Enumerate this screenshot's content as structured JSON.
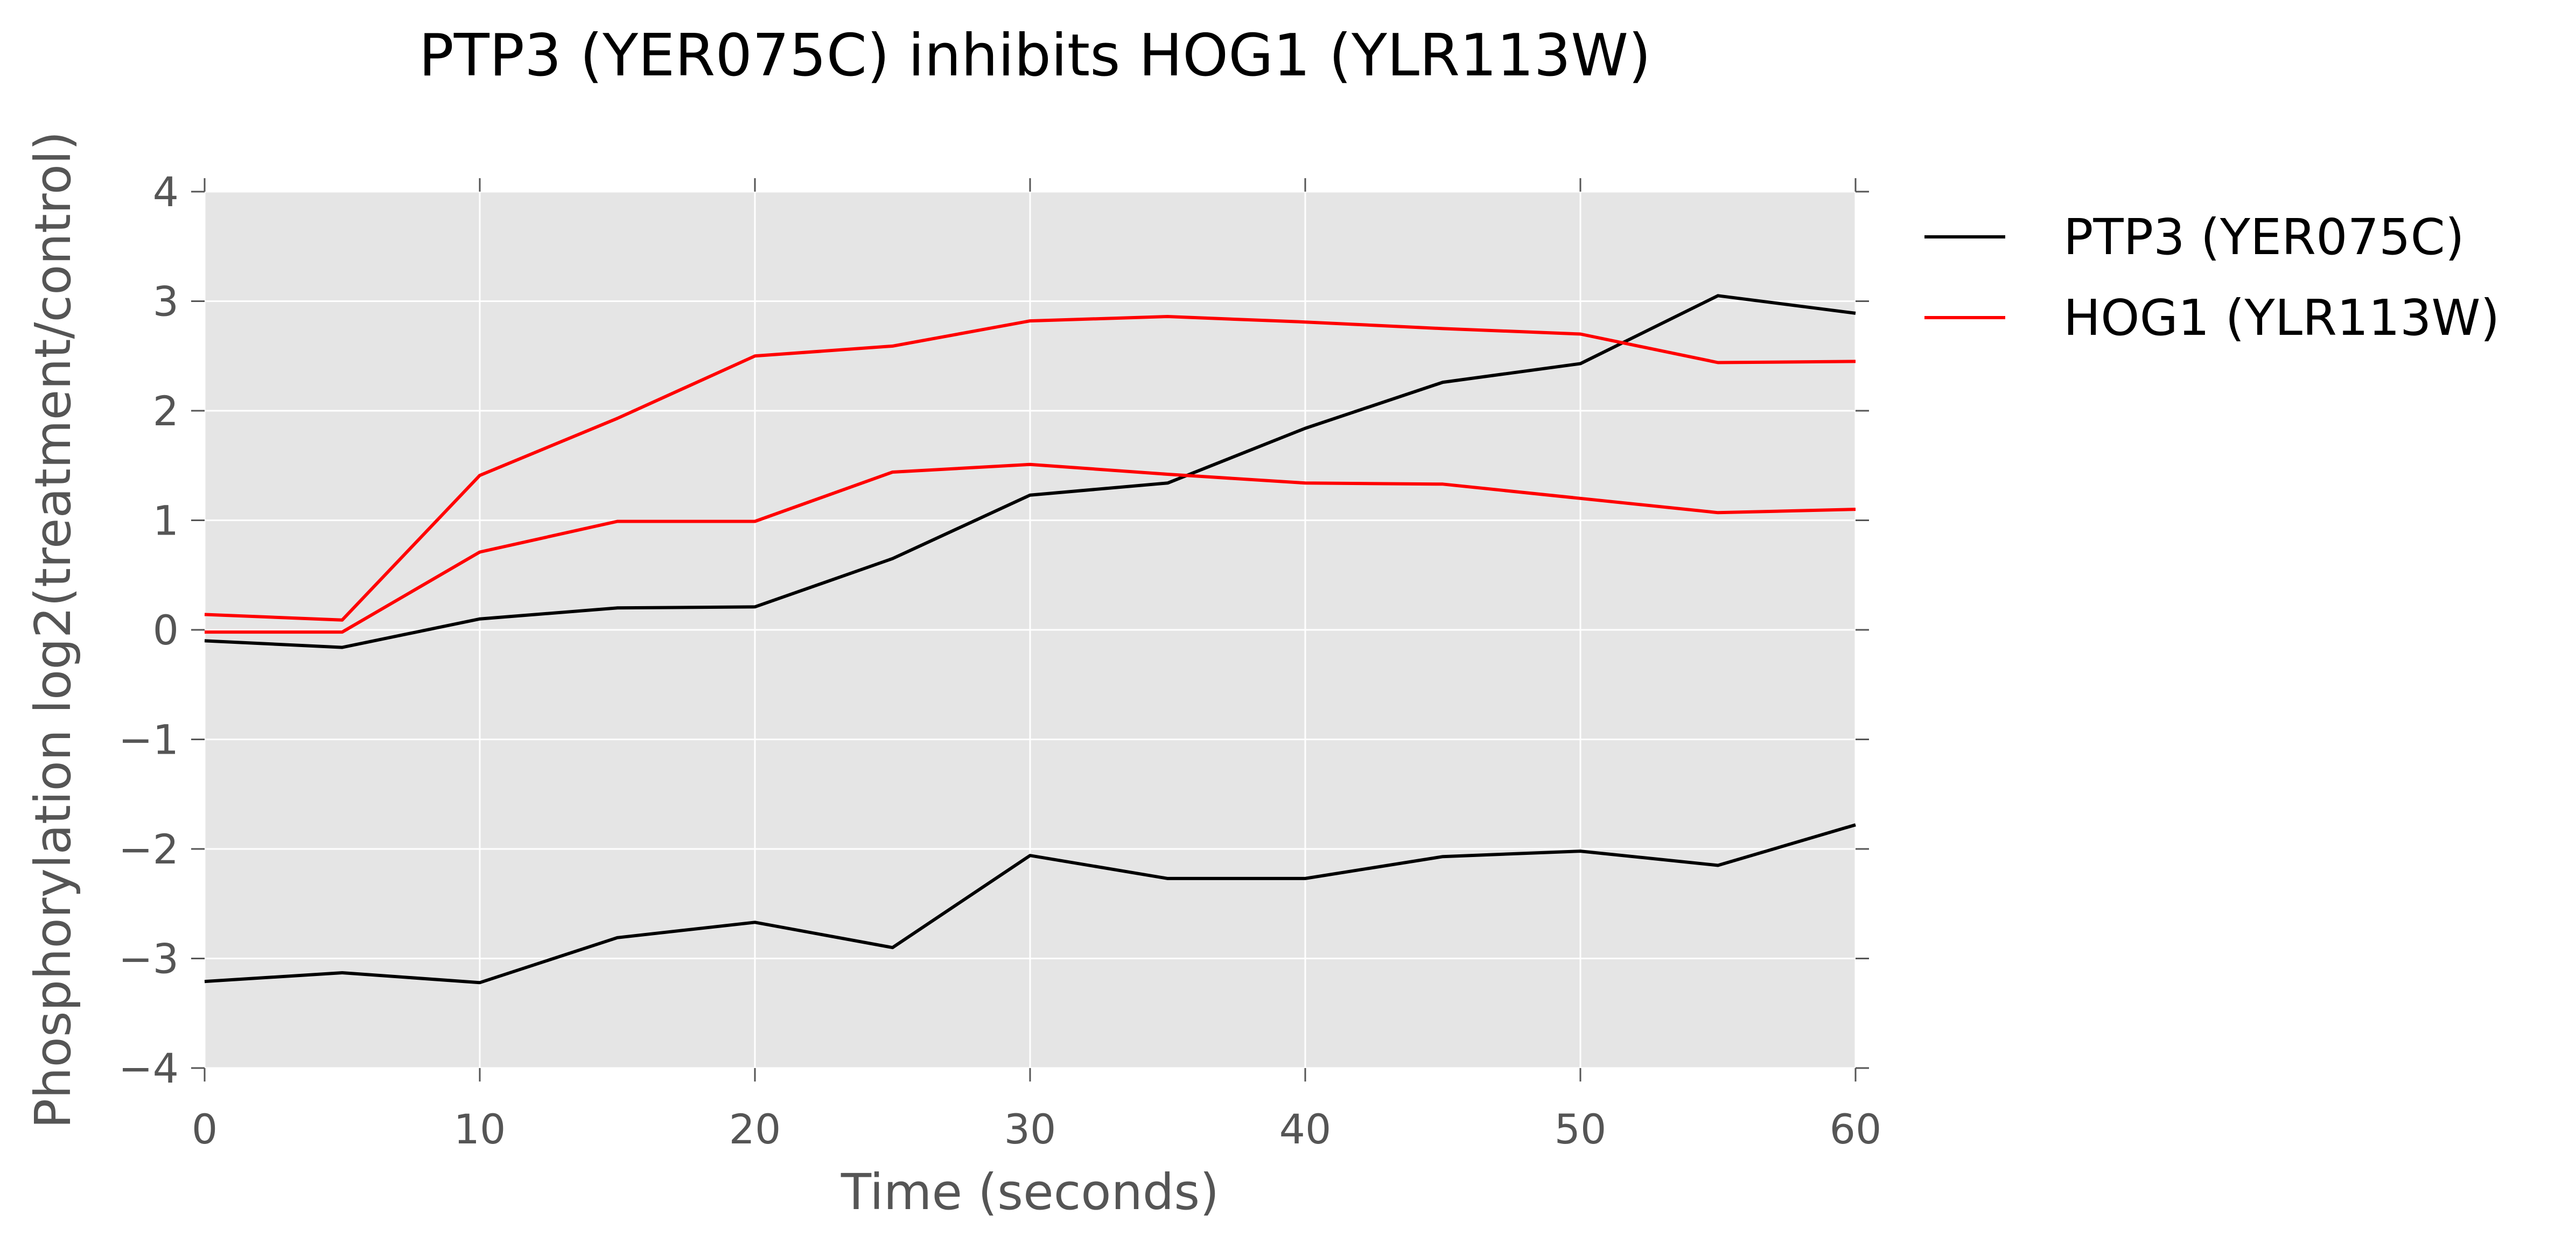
{
  "chart_data": {
    "type": "line",
    "title": "PTP3 (YER075C) inhibits HOG1 (YLR113W)",
    "xlabel": "Time (seconds)",
    "ylabel": "Phosphorylation log2(treatment/control)",
    "xlim": [
      0,
      60
    ],
    "ylim": [
      -4,
      4
    ],
    "xticks": [
      0,
      10,
      20,
      30,
      40,
      50,
      60
    ],
    "yticks": [
      4,
      3,
      2,
      1,
      0,
      -1,
      -2,
      -3,
      -4
    ],
    "xtick_labels": [
      "0",
      "10",
      "20",
      "30",
      "40",
      "50",
      "60"
    ],
    "ytick_labels": [
      "4",
      "3",
      "2",
      "1",
      "0",
      "−1",
      "−2",
      "−3",
      "−4"
    ],
    "grid": true,
    "background_color": "#e5e5e5",
    "legend_position": "outside-upper-right",
    "x": [
      0,
      5,
      10,
      15,
      20,
      25,
      30,
      35,
      40,
      45,
      50,
      55,
      60
    ],
    "series": [
      {
        "name": "PTP3 (YER075C)",
        "color": "#000000",
        "legend": true,
        "values": [
          -0.1,
          -0.16,
          0.1,
          0.2,
          0.21,
          0.65,
          1.23,
          1.34,
          1.84,
          2.26,
          2.43,
          3.05,
          2.89
        ]
      },
      {
        "name": "PTP3 (YER075C)",
        "color": "#000000",
        "legend": false,
        "values": [
          -3.21,
          -3.13,
          -3.22,
          -2.81,
          -2.67,
          -2.9,
          -2.06,
          -2.27,
          -2.27,
          -2.07,
          -2.02,
          -2.15,
          -1.78
        ]
      },
      {
        "name": "HOG1 (YLR113W)",
        "color": "#ff0000",
        "legend": true,
        "values": [
          0.14,
          0.09,
          1.41,
          1.93,
          2.5,
          2.59,
          2.82,
          2.86,
          2.81,
          2.75,
          2.7,
          2.44,
          2.45
        ]
      },
      {
        "name": "HOG1 (YLR113W)",
        "color": "#ff0000",
        "legend": false,
        "values": [
          -0.02,
          -0.02,
          0.71,
          0.99,
          0.99,
          1.44,
          1.51,
          1.42,
          1.34,
          1.33,
          1.2,
          1.07,
          1.1
        ]
      }
    ]
  }
}
